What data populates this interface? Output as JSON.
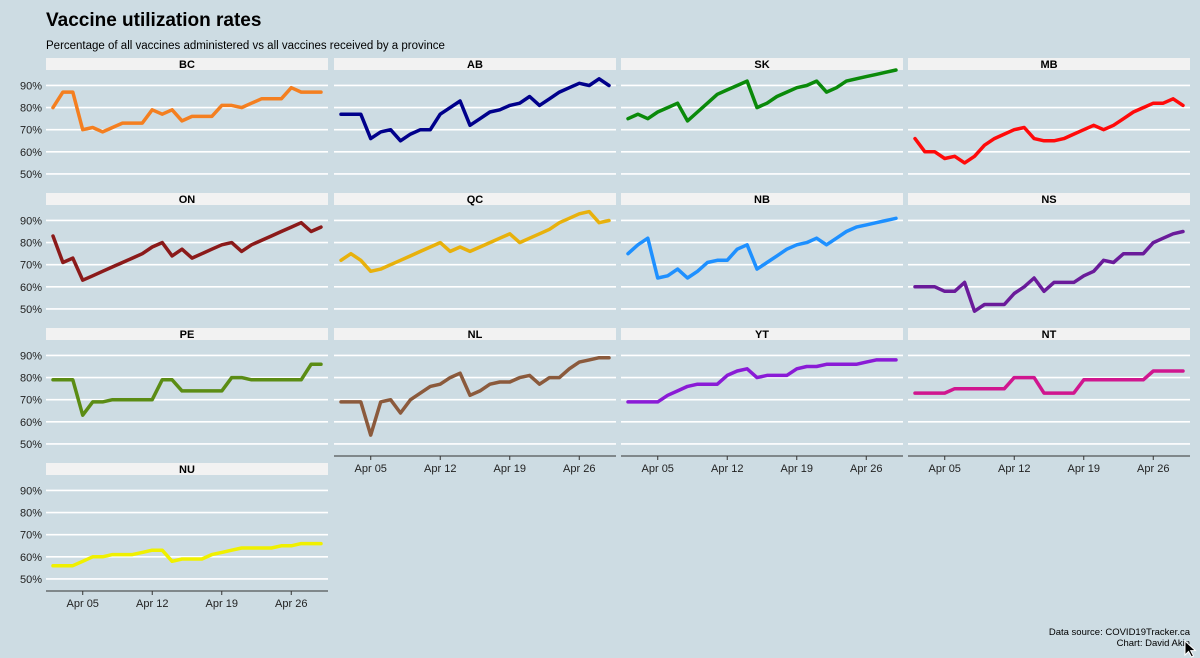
{
  "title": "Vaccine utilization rates",
  "subtitle": "Percentage of all vaccines administered vs all vaccines received by a province",
  "source": "Data source: COVID19Tracker.ca",
  "credit": "Chart: David Akin",
  "chart_data": {
    "type": "line",
    "facets": true,
    "x_axis_ticks": [
      "Apr 05",
      "Apr 12",
      "Apr 19",
      "Apr 26"
    ],
    "x_tick_days": [
      5,
      12,
      19,
      26
    ],
    "x_range_days": [
      1.3,
      29.7
    ],
    "y_axis_ticks": [
      "50%",
      "60%",
      "70%",
      "80%",
      "90%"
    ],
    "y_tick_values": [
      50,
      60,
      70,
      80,
      90
    ],
    "ylim": [
      45,
      97
    ],
    "grid": true,
    "series": [
      {
        "name": "BC",
        "color": "#f47f20",
        "x": [
          2,
          3,
          4,
          5,
          6,
          7,
          8,
          9,
          10,
          11,
          12,
          13,
          14,
          15,
          16,
          17,
          18,
          19,
          20,
          21,
          22,
          23,
          24,
          25,
          26,
          27,
          28,
          29
        ],
        "values": [
          80,
          87,
          87,
          70,
          71,
          69,
          71,
          73,
          73,
          73,
          79,
          77,
          79,
          74,
          76,
          76,
          76,
          81,
          81,
          80,
          82,
          84,
          84,
          84,
          89,
          87,
          87,
          87
        ]
      },
      {
        "name": "AB",
        "color": "#00008b",
        "x": [
          2,
          3,
          4,
          5,
          6,
          7,
          8,
          9,
          10,
          11,
          12,
          13,
          14,
          15,
          16,
          17,
          18,
          19,
          20,
          21,
          22,
          23,
          24,
          25,
          26,
          27,
          28,
          29
        ],
        "values": [
          77,
          77,
          77,
          66,
          69,
          70,
          65,
          68,
          70,
          70,
          77,
          80,
          83,
          72,
          75,
          78,
          79,
          81,
          82,
          85,
          81,
          84,
          87,
          89,
          91,
          90,
          93,
          90
        ]
      },
      {
        "name": "SK",
        "color": "#0a8a0a",
        "x": [
          2,
          3,
          4,
          5,
          6,
          7,
          8,
          9,
          10,
          11,
          12,
          13,
          14,
          15,
          16,
          17,
          18,
          19,
          20,
          21,
          22,
          23,
          24,
          25,
          26,
          27,
          28,
          29
        ],
        "values": [
          75,
          77,
          75,
          78,
          80,
          82,
          74,
          78,
          82,
          86,
          88,
          90,
          92,
          80,
          82,
          85,
          87,
          89,
          90,
          92,
          87,
          89,
          92,
          93,
          94,
          95,
          96,
          97
        ]
      },
      {
        "name": "MB",
        "color": "#ff0a0a",
        "x": [
          2,
          3,
          4,
          5,
          6,
          7,
          8,
          9,
          10,
          11,
          12,
          13,
          14,
          15,
          16,
          17,
          18,
          19,
          20,
          21,
          22,
          23,
          24,
          25,
          26,
          27,
          28,
          29
        ],
        "values": [
          66,
          60,
          60,
          57,
          58,
          55,
          58,
          63,
          66,
          68,
          70,
          71,
          66,
          65,
          65,
          66,
          68,
          70,
          72,
          70,
          72,
          75,
          78,
          80,
          82,
          82,
          84,
          81
        ]
      },
      {
        "name": "ON",
        "color": "#8b1a1a",
        "x": [
          2,
          3,
          4,
          5,
          6,
          7,
          8,
          9,
          10,
          11,
          12,
          13,
          14,
          15,
          16,
          17,
          18,
          19,
          20,
          21,
          22,
          23,
          24,
          25,
          26,
          27,
          28,
          29
        ],
        "values": [
          83,
          71,
          73,
          63,
          65,
          67,
          69,
          71,
          73,
          75,
          78,
          80,
          74,
          77,
          73,
          75,
          77,
          79,
          80,
          76,
          79,
          81,
          83,
          85,
          87,
          89,
          85,
          87
        ]
      },
      {
        "name": "QC",
        "color": "#e8b10c",
        "x": [
          2,
          3,
          4,
          5,
          6,
          7,
          8,
          9,
          10,
          11,
          12,
          13,
          14,
          15,
          16,
          17,
          18,
          19,
          20,
          21,
          22,
          23,
          24,
          25,
          26,
          27,
          28,
          29
        ],
        "values": [
          72,
          75,
          72,
          67,
          68,
          70,
          72,
          74,
          76,
          78,
          80,
          76,
          78,
          76,
          78,
          80,
          82,
          84,
          80,
          82,
          84,
          86,
          89,
          91,
          93,
          94,
          89,
          90
        ]
      },
      {
        "name": "NB",
        "color": "#1e90ff",
        "x": [
          2,
          3,
          4,
          5,
          6,
          7,
          8,
          9,
          10,
          11,
          12,
          13,
          14,
          15,
          16,
          17,
          18,
          19,
          20,
          21,
          22,
          23,
          24,
          25,
          26,
          27,
          28,
          29
        ],
        "values": [
          75,
          79,
          82,
          64,
          65,
          68,
          64,
          67,
          71,
          72,
          72,
          77,
          79,
          68,
          71,
          74,
          77,
          79,
          80,
          82,
          79,
          82,
          85,
          87,
          88,
          89,
          90,
          91
        ]
      },
      {
        "name": "NS",
        "color": "#6a1b9a",
        "x": [
          2,
          3,
          4,
          5,
          6,
          7,
          8,
          9,
          10,
          11,
          12,
          13,
          14,
          15,
          16,
          17,
          18,
          19,
          20,
          21,
          22,
          23,
          24,
          25,
          26,
          27,
          28,
          29
        ],
        "values": [
          60,
          60,
          60,
          58,
          58,
          62,
          49,
          52,
          52,
          52,
          57,
          60,
          64,
          58,
          62,
          62,
          62,
          65,
          67,
          72,
          71,
          75,
          75,
          75,
          80,
          82,
          84,
          85
        ]
      },
      {
        "name": "PE",
        "color": "#5b8c14",
        "x": [
          2,
          3,
          4,
          5,
          6,
          7,
          8,
          9,
          10,
          11,
          12,
          13,
          14,
          15,
          16,
          17,
          18,
          19,
          20,
          21,
          22,
          23,
          24,
          25,
          26,
          27,
          28,
          29
        ],
        "values": [
          79,
          79,
          79,
          63,
          69,
          69,
          70,
          70,
          70,
          70,
          70,
          79,
          79,
          74,
          74,
          74,
          74,
          74,
          80,
          80,
          79,
          79,
          79,
          79,
          79,
          79,
          86,
          86
        ]
      },
      {
        "name": "NL",
        "color": "#8b5a3c",
        "x": [
          2,
          3,
          4,
          5,
          6,
          7,
          8,
          9,
          10,
          11,
          12,
          13,
          14,
          15,
          16,
          17,
          18,
          19,
          20,
          21,
          22,
          23,
          24,
          25,
          26,
          27,
          28,
          29
        ],
        "values": [
          69,
          69,
          69,
          54,
          69,
          70,
          64,
          70,
          73,
          76,
          77,
          80,
          82,
          72,
          74,
          77,
          78,
          78,
          80,
          81,
          77,
          80,
          80,
          84,
          87,
          88,
          89,
          89
        ]
      },
      {
        "name": "YT",
        "color": "#8a1bd6",
        "x": [
          2,
          3,
          4,
          5,
          6,
          7,
          8,
          9,
          10,
          11,
          12,
          13,
          14,
          15,
          16,
          17,
          18,
          19,
          20,
          21,
          22,
          23,
          24,
          25,
          26,
          27,
          28,
          29
        ],
        "values": [
          69,
          69,
          69,
          69,
          72,
          74,
          76,
          77,
          77,
          77,
          81,
          83,
          84,
          80,
          81,
          81,
          81,
          84,
          85,
          85,
          86,
          86,
          86,
          86,
          87,
          88,
          88,
          88
        ]
      },
      {
        "name": "NT",
        "color": "#d0168f",
        "x": [
          2,
          3,
          4,
          5,
          6,
          7,
          8,
          9,
          10,
          11,
          12,
          13,
          14,
          15,
          16,
          17,
          18,
          19,
          20,
          21,
          22,
          23,
          24,
          25,
          26,
          27,
          28,
          29
        ],
        "values": [
          73,
          73,
          73,
          73,
          75,
          75,
          75,
          75,
          75,
          75,
          80,
          80,
          80,
          73,
          73,
          73,
          73,
          79,
          79,
          79,
          79,
          79,
          79,
          79,
          83,
          83,
          83,
          83
        ]
      },
      {
        "name": "NU",
        "color": "#f0f000",
        "x": [
          2,
          3,
          4,
          5,
          6,
          7,
          8,
          9,
          10,
          11,
          12,
          13,
          14,
          15,
          16,
          17,
          18,
          19,
          20,
          21,
          22,
          23,
          24,
          25,
          26,
          27,
          28,
          29
        ],
        "values": [
          56,
          56,
          56,
          58,
          60,
          60,
          61,
          61,
          61,
          62,
          63,
          63,
          58,
          59,
          59,
          59,
          61,
          62,
          63,
          64,
          64,
          64,
          64,
          65,
          65,
          66,
          66,
          66
        ]
      }
    ]
  }
}
